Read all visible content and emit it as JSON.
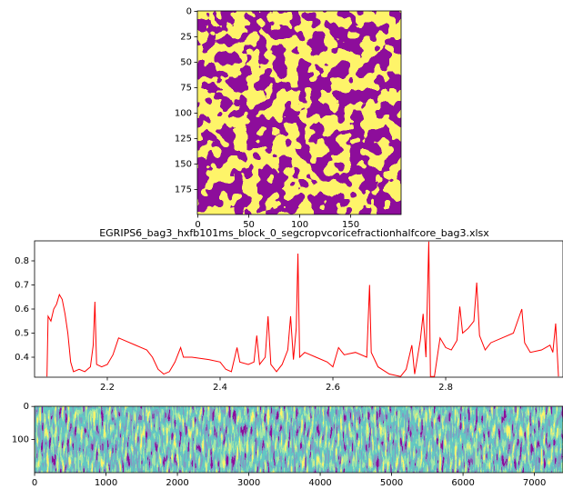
{
  "chart_data": [
    {
      "type": "image",
      "colormap": [
        "#440154",
        "#fde725"
      ],
      "xlim": [
        -0.5,
        199.5
      ],
      "ylim": [
        199.5,
        -0.5
      ],
      "xticks": [
        0,
        50,
        100,
        150
      ],
      "yticks": [
        0,
        25,
        50,
        75,
        100,
        125,
        150,
        175
      ]
    },
    {
      "type": "line",
      "title": "EGRIPS6_bag3_hxfb101ms_block_0_segcropvcoricefractionhalfcore_bag3.xlsx",
      "color": "#ff0000",
      "xlim": [
        2.071,
        3.008
      ],
      "ylim": [
        0.317,
        0.883
      ],
      "xticks": [
        2.2,
        2.4,
        2.6,
        2.8
      ],
      "yticks": [
        0.4,
        0.5,
        0.6,
        0.7,
        0.8
      ],
      "x": [
        2.093,
        2.095,
        2.1,
        2.105,
        2.11,
        2.115,
        2.12,
        2.125,
        2.13,
        2.135,
        2.14,
        2.15,
        2.16,
        2.17,
        2.175,
        2.178,
        2.181,
        2.19,
        2.2,
        2.21,
        2.22,
        2.23,
        2.25,
        2.27,
        2.28,
        2.29,
        2.3,
        2.31,
        2.32,
        2.33,
        2.335,
        2.35,
        2.38,
        2.4,
        2.41,
        2.42,
        2.43,
        2.435,
        2.45,
        2.46,
        2.465,
        2.47,
        2.48,
        2.485,
        2.49,
        2.5,
        2.51,
        2.52,
        2.525,
        2.53,
        2.535,
        2.538,
        2.541,
        2.55,
        2.57,
        2.59,
        2.6,
        2.61,
        2.62,
        2.64,
        2.66,
        2.665,
        2.668,
        2.68,
        2.7,
        2.72,
        2.73,
        2.74,
        2.745,
        2.755,
        2.76,
        2.765,
        2.77,
        2.773,
        2.78,
        2.79,
        2.8,
        2.81,
        2.82,
        2.825,
        2.83,
        2.84,
        2.85,
        2.855,
        2.86,
        2.87,
        2.88,
        2.9,
        2.92,
        2.935,
        2.94,
        2.95,
        2.97,
        2.985,
        2.99,
        2.995,
        3.0
      ],
      "values": [
        0.32,
        0.57,
        0.55,
        0.6,
        0.62,
        0.66,
        0.64,
        0.58,
        0.5,
        0.38,
        0.34,
        0.35,
        0.34,
        0.36,
        0.45,
        0.63,
        0.37,
        0.36,
        0.37,
        0.41,
        0.48,
        0.47,
        0.45,
        0.43,
        0.4,
        0.35,
        0.33,
        0.34,
        0.38,
        0.44,
        0.4,
        0.4,
        0.39,
        0.38,
        0.35,
        0.34,
        0.44,
        0.38,
        0.37,
        0.38,
        0.49,
        0.37,
        0.4,
        0.57,
        0.37,
        0.34,
        0.37,
        0.43,
        0.57,
        0.39,
        0.52,
        0.83,
        0.4,
        0.42,
        0.4,
        0.38,
        0.36,
        0.44,
        0.41,
        0.42,
        0.4,
        0.7,
        0.42,
        0.36,
        0.33,
        0.32,
        0.35,
        0.45,
        0.33,
        0.47,
        0.58,
        0.4,
        0.88,
        0.32,
        0.32,
        0.48,
        0.44,
        0.43,
        0.47,
        0.61,
        0.5,
        0.52,
        0.55,
        0.71,
        0.49,
        0.43,
        0.46,
        0.48,
        0.5,
        0.6,
        0.46,
        0.42,
        0.43,
        0.45,
        0.42,
        0.54,
        0.32
      ]
    },
    {
      "type": "image",
      "colormap": [
        "#440154",
        "#3b528b",
        "#21918c",
        "#5ec962",
        "#fde725"
      ],
      "xlim": [
        -0.5,
        7400
      ],
      "ylim": [
        200,
        -0.5
      ],
      "xticks": [
        0,
        1000,
        2000,
        3000,
        4000,
        5000,
        6000,
        7000
      ],
      "yticks": [
        0,
        100
      ]
    }
  ]
}
